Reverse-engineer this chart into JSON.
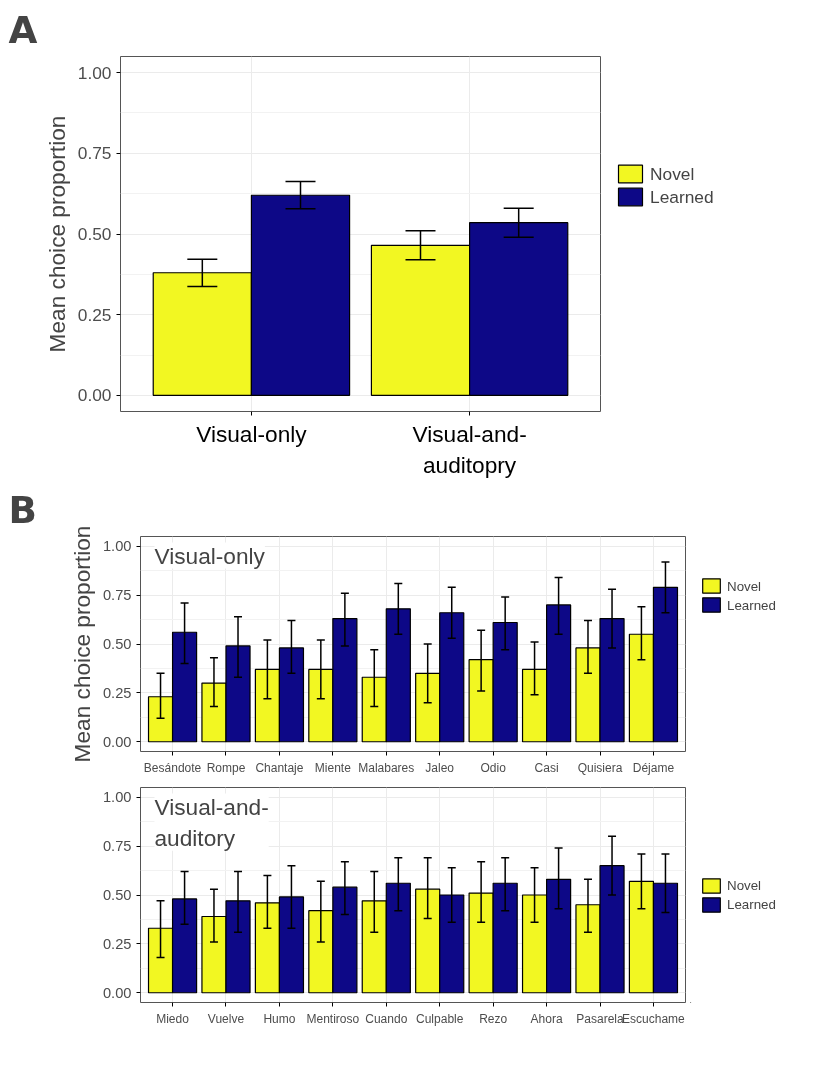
{
  "chart_data": [
    {
      "type": "bar",
      "title": "A",
      "ylabel": "Mean choice proportion",
      "categories": [
        "Visual-only",
        "Visual-and-\nauditopry"
      ],
      "ylim": [
        -0.05,
        1.05
      ],
      "yticks": [
        {
          "value": 0,
          "label": "0.00"
        },
        {
          "value": 0.25,
          "label": "0.25"
        },
        {
          "value": 0.5,
          "label": "0.50"
        },
        {
          "value": 0.75,
          "label": "0.75"
        },
        {
          "value": 1,
          "label": "1.00"
        }
      ],
      "grid": true,
      "legend": "right",
      "series": [
        {
          "name": "Novel",
          "color": "#f2f722",
          "values": [
            0.38,
            0.465
          ],
          "errors": [
            [
              0.337,
              0.422
            ],
            [
              0.42,
              0.51
            ]
          ]
        },
        {
          "name": "Learned",
          "color": "#0d0887",
          "values": [
            0.62,
            0.535
          ],
          "errors": [
            [
              0.578,
              0.663
            ],
            [
              0.49,
              0.58
            ]
          ]
        }
      ]
    },
    {
      "type": "bar",
      "title": "B",
      "ylabel": "Mean choice proportion",
      "annotations": [
        "Visual-only"
      ],
      "categories": [
        "Besándote",
        "Rompe",
        "Chantaje",
        "Miente",
        "Malabares",
        "Jaleo",
        "Odio",
        "Casi",
        "Quisiera",
        "Déjame"
      ],
      "ylim": [
        -0.05,
        1.05
      ],
      "yticks": [
        {
          "value": 0,
          "label": "0.00"
        },
        {
          "value": 0.25,
          "label": "0.25"
        },
        {
          "value": 0.5,
          "label": "0.50"
        },
        {
          "value": 0.75,
          "label": "0.75"
        },
        {
          "value": 1,
          "label": "1.00"
        }
      ],
      "grid": true,
      "legend": "right",
      "series": [
        {
          "name": "Novel",
          "color": "#f2f722",
          "values": [
            0.23,
            0.3,
            0.37,
            0.37,
            0.33,
            0.35,
            0.42,
            0.37,
            0.48,
            0.55
          ],
          "errors": [
            [
              0.12,
              0.35
            ],
            [
              0.18,
              0.43
            ],
            [
              0.22,
              0.52
            ],
            [
              0.22,
              0.52
            ],
            [
              0.18,
              0.47
            ],
            [
              0.2,
              0.5
            ],
            [
              0.26,
              0.57
            ],
            [
              0.24,
              0.51
            ],
            [
              0.35,
              0.62
            ],
            [
              0.42,
              0.69
            ]
          ]
        },
        {
          "name": "Learned",
          "color": "#0d0887",
          "values": [
            0.56,
            0.49,
            0.48,
            0.63,
            0.68,
            0.66,
            0.61,
            0.7,
            0.63,
            0.79
          ],
          "errors": [
            [
              0.4,
              0.71
            ],
            [
              0.33,
              0.64
            ],
            [
              0.35,
              0.62
            ],
            [
              0.49,
              0.76
            ],
            [
              0.55,
              0.81
            ],
            [
              0.53,
              0.79
            ],
            [
              0.47,
              0.74
            ],
            [
              0.55,
              0.84
            ],
            [
              0.48,
              0.78
            ],
            [
              0.66,
              0.92
            ]
          ]
        }
      ]
    },
    {
      "type": "bar",
      "annotations": [
        "Visual-and-\nauditory"
      ],
      "categories": [
        "Miedo",
        "Vuelve",
        "Humo",
        "Mentiroso",
        "Cuando",
        "Culpable",
        "Rezo",
        "Ahora",
        "Pasarela",
        "Escuchame"
      ],
      "ylim": [
        -0.05,
        1.05
      ],
      "yticks": [
        {
          "value": 0,
          "label": "0.00"
        },
        {
          "value": 0.25,
          "label": "0.25"
        },
        {
          "value": 0.5,
          "label": "0.50"
        },
        {
          "value": 0.75,
          "label": "0.75"
        },
        {
          "value": 1,
          "label": "1.00"
        }
      ],
      "grid": true,
      "legend": "right",
      "series": [
        {
          "name": "Novel",
          "color": "#f2f722",
          "values": [
            0.33,
            0.39,
            0.46,
            0.42,
            0.47,
            0.53,
            0.51,
            0.5,
            0.45,
            0.57
          ],
          "errors": [
            [
              0.18,
              0.47
            ],
            [
              0.26,
              0.53
            ],
            [
              0.33,
              0.6
            ],
            [
              0.26,
              0.57
            ],
            [
              0.31,
              0.62
            ],
            [
              0.38,
              0.69
            ],
            [
              0.36,
              0.67
            ],
            [
              0.36,
              0.64
            ],
            [
              0.31,
              0.58
            ],
            [
              0.43,
              0.71
            ]
          ]
        },
        {
          "name": "Learned",
          "color": "#0d0887",
          "values": [
            0.48,
            0.47,
            0.49,
            0.54,
            0.56,
            0.5,
            0.56,
            0.58,
            0.65,
            0.56
          ],
          "errors": [
            [
              0.35,
              0.62
            ],
            [
              0.31,
              0.62
            ],
            [
              0.33,
              0.65
            ],
            [
              0.4,
              0.67
            ],
            [
              0.42,
              0.69
            ],
            [
              0.36,
              0.64
            ],
            [
              0.42,
              0.69
            ],
            [
              0.43,
              0.74
            ],
            [
              0.5,
              0.8
            ],
            [
              0.41,
              0.71
            ]
          ]
        }
      ]
    }
  ]
}
